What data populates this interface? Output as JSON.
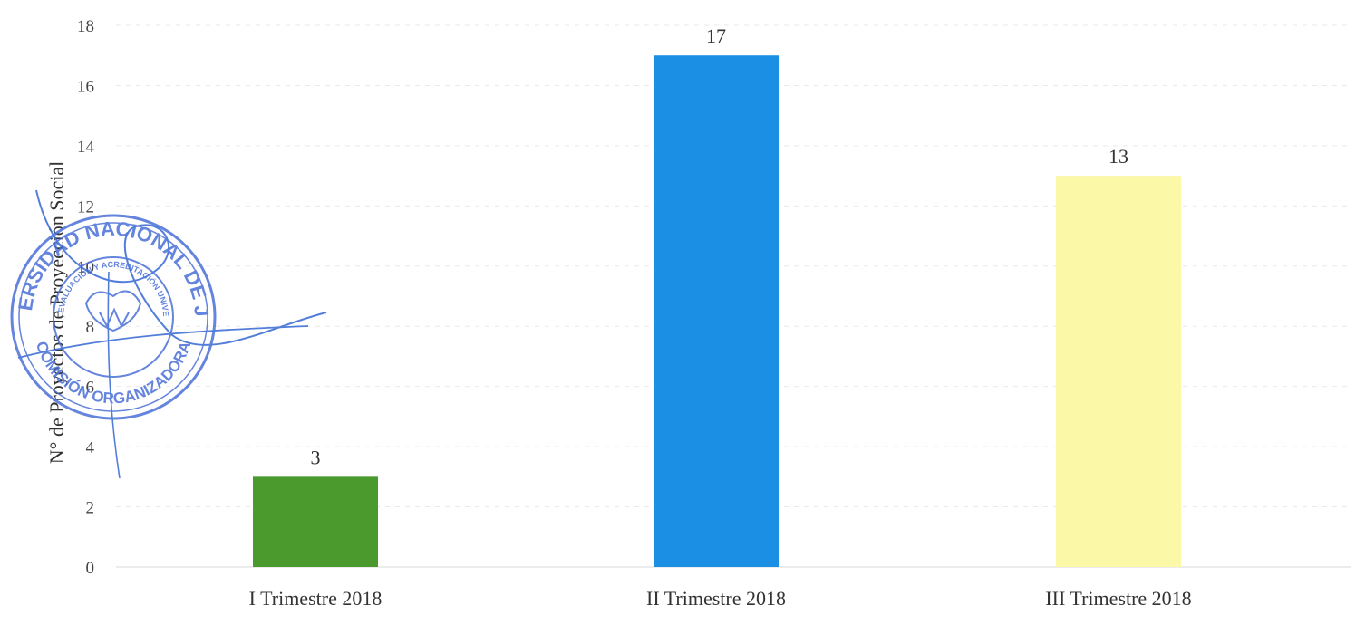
{
  "chart_data": {
    "type": "bar",
    "categories": [
      "I Trimestre 2018",
      "II Trimestre 2018",
      "III Trimestre 2018"
    ],
    "values": [
      3,
      17,
      13
    ],
    "colors": [
      "#4b9a2e",
      "#1a8fe3",
      "#fbf8a8"
    ],
    "title": "",
    "xlabel": "",
    "ylabel": "N° de Proyectos de Proyección Social",
    "ylim": [
      0,
      18
    ],
    "yticks": [
      0,
      2,
      4,
      6,
      8,
      10,
      12,
      14,
      16,
      18
    ],
    "data_labels": [
      "3",
      "17",
      "13"
    ],
    "grid": true,
    "legend": "none"
  },
  "stamp": {
    "outer_text": "UNIVERSIDAD NACIONAL DE JAÉN",
    "inner_text": "CALIDAD, EVALUACIÓN Y ACREDITACIÓN UNIVERSITARIA",
    "bottom_text": "COMISIÓN ORGANIZADORA",
    "color": "#4a6fd8"
  }
}
